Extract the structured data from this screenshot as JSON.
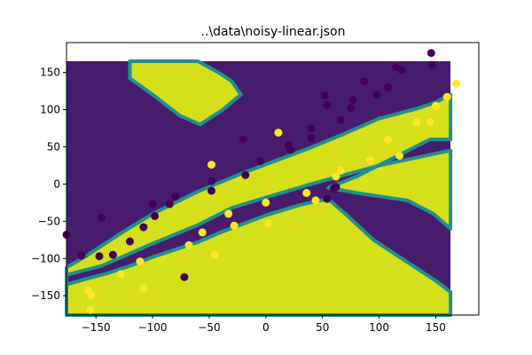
{
  "chart_data": {
    "type": "scatter",
    "title": "..\\data\\noisy-linear.json",
    "xlabel": "",
    "ylabel": "",
    "xlim": [
      -176,
      188
    ],
    "ylim": [
      -176,
      190
    ],
    "x_ticks": [
      {
        "value": -150,
        "label": "−150"
      },
      {
        "value": -100,
        "label": "−100"
      },
      {
        "value": -50,
        "label": "−50"
      },
      {
        "value": 0,
        "label": "0"
      },
      {
        "value": 50,
        "label": "50"
      },
      {
        "value": 100,
        "label": "100"
      },
      {
        "value": 150,
        "label": "150"
      }
    ],
    "y_ticks": [
      {
        "value": -150,
        "label": "−150"
      },
      {
        "value": -100,
        "label": "−100"
      },
      {
        "value": -50,
        "label": "−50"
      },
      {
        "value": 0,
        "label": "0"
      },
      {
        "value": 50,
        "label": "50"
      },
      {
        "value": 100,
        "label": "100"
      },
      {
        "value": 150,
        "label": "150"
      }
    ],
    "grid": false,
    "legend": "none",
    "colors": {
      "class_0": "#440154",
      "class_1": "#fde725",
      "region_0": "#471c6d",
      "region_1": "#d5e01a",
      "boundary": "#21908c"
    },
    "decision_regions": {
      "extent_x": [
        -176,
        163
      ],
      "extent_y": [
        -176,
        165
      ],
      "class_1_regions": [
        [
          [
            -120,
            165
          ],
          [
            -60,
            165
          ],
          [
            -42,
            150
          ],
          [
            -30,
            138
          ],
          [
            -22,
            120
          ],
          [
            -38,
            100
          ],
          [
            -58,
            80
          ],
          [
            -76,
            92
          ],
          [
            -98,
            118
          ],
          [
            -120,
            142
          ]
        ],
        [
          [
            -176,
            -140
          ],
          [
            -176,
            -122
          ],
          [
            -145,
            -110
          ],
          [
            -100,
            -80
          ],
          [
            -60,
            -55
          ],
          [
            -30,
            -32
          ],
          [
            0,
            -18
          ],
          [
            40,
            0
          ],
          [
            100,
            25
          ],
          [
            163,
            45
          ],
          [
            163,
            -60
          ],
          [
            148,
            -40
          ],
          [
            125,
            -22
          ],
          [
            80,
            -12
          ],
          [
            55,
            -5
          ],
          [
            80,
            10
          ],
          [
            145,
            60
          ],
          [
            163,
            60
          ],
          [
            163,
            120
          ],
          [
            150,
            110
          ],
          [
            135,
            102
          ],
          [
            100,
            88
          ],
          [
            70,
            68
          ],
          [
            38,
            48
          ],
          [
            10,
            32
          ],
          [
            -20,
            15
          ],
          [
            -60,
            -10
          ],
          [
            -100,
            -40
          ],
          [
            -130,
            -68
          ],
          [
            -160,
            -98
          ],
          [
            -176,
            -112
          ],
          [
            -176,
            -135
          ],
          [
            -160,
            -128
          ],
          [
            -140,
            -120
          ],
          [
            -120,
            -110
          ],
          [
            -100,
            -98
          ],
          [
            -60,
            -78
          ],
          [
            -40,
            -65
          ],
          [
            0,
            -42
          ],
          [
            30,
            -28
          ],
          [
            55,
            -20
          ],
          [
            70,
            -40
          ],
          [
            95,
            -75
          ],
          [
            125,
            -105
          ],
          [
            150,
            -130
          ],
          [
            163,
            -145
          ],
          [
            163,
            -176
          ],
          [
            -176,
            -176
          ]
        ]
      ]
    },
    "series": [
      {
        "name": "",
        "class": 0,
        "points": [
          [
            -176,
            -68
          ],
          [
            -163,
            -96
          ],
          [
            -145,
            -45
          ],
          [
            -147,
            -97
          ],
          [
            -135,
            -95
          ],
          [
            -120,
            -77
          ],
          [
            -108,
            -58
          ],
          [
            -100,
            -27
          ],
          [
            -98,
            -43
          ],
          [
            -85,
            -27
          ],
          [
            -80,
            -17
          ],
          [
            -72,
            -125
          ],
          [
            -48,
            4
          ],
          [
            -48,
            -9
          ],
          [
            -20,
            60
          ],
          [
            -18,
            12
          ],
          [
            -5,
            31
          ],
          [
            20,
            52
          ],
          [
            22,
            46
          ],
          [
            40,
            75
          ],
          [
            40,
            62
          ],
          [
            52,
            119
          ],
          [
            54,
            106
          ],
          [
            54,
            -20
          ],
          [
            60,
            -6
          ],
          [
            62,
            -4
          ],
          [
            66,
            86
          ],
          [
            75,
            102
          ],
          [
            77,
            113
          ],
          [
            87,
            138
          ],
          [
            98,
            120
          ],
          [
            108,
            130
          ],
          [
            115,
            157
          ],
          [
            120,
            153
          ],
          [
            146,
            176
          ],
          [
            147,
            160
          ]
        ]
      },
      {
        "name": "",
        "class": 1,
        "points": [
          [
            -157,
            -143
          ],
          [
            -154,
            -150
          ],
          [
            -155,
            -169
          ],
          [
            -128,
            -121
          ],
          [
            -111,
            -104
          ],
          [
            -108,
            -140
          ],
          [
            -68,
            -82
          ],
          [
            -56,
            -65
          ],
          [
            -45,
            -95
          ],
          [
            -48,
            26
          ],
          [
            -33,
            -40
          ],
          [
            -28,
            -56
          ],
          [
            0,
            -25
          ],
          [
            2,
            -53
          ],
          [
            11,
            69
          ],
          [
            36,
            -12
          ],
          [
            44,
            -22
          ],
          [
            62,
            10
          ],
          [
            66,
            18
          ],
          [
            92,
            32
          ],
          [
            108,
            60
          ],
          [
            118,
            38
          ],
          [
            133,
            83
          ],
          [
            145,
            83
          ],
          [
            150,
            105
          ],
          [
            160,
            117
          ],
          [
            168,
            135
          ]
        ]
      }
    ]
  }
}
